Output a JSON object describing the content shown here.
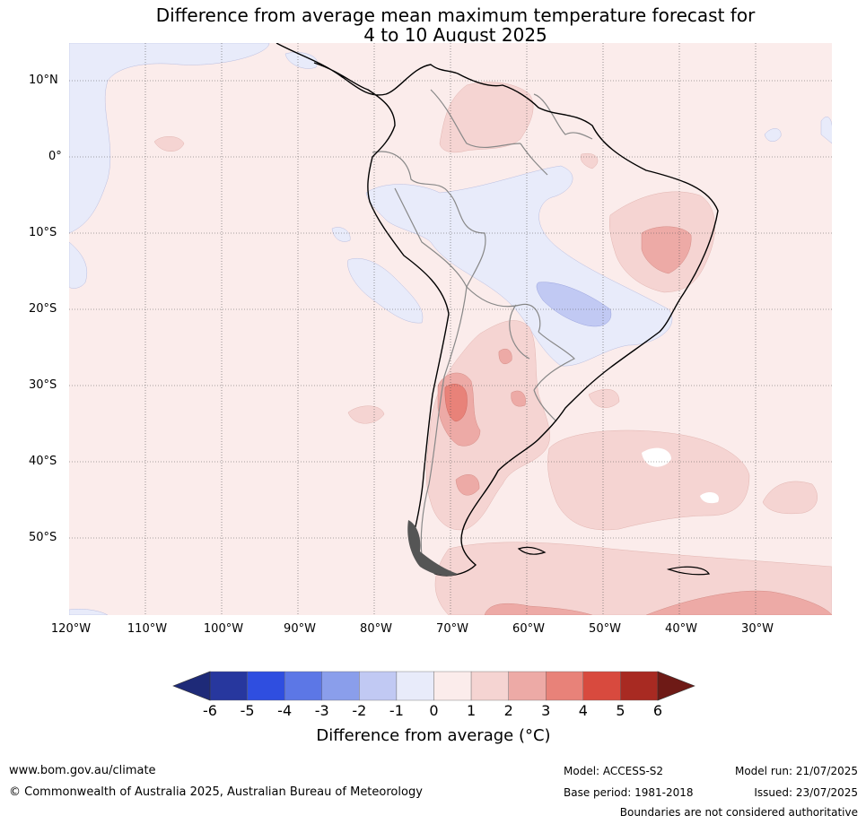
{
  "title": {
    "line1": "Difference from average mean maximum temperature forecast for",
    "line2": "4 to 10 August 2025"
  },
  "map": {
    "lat_labels": [
      "10°N",
      "0°",
      "10°S",
      "20°S",
      "30°S",
      "40°S",
      "50°S"
    ],
    "lon_labels": [
      "120°W",
      "110°W",
      "100°W",
      "90°W",
      "80°W",
      "70°W",
      "60°W",
      "50°W",
      "40°W",
      "30°W"
    ],
    "lon_range": [
      -120,
      -20
    ],
    "lat_range": [
      -60,
      15
    ],
    "gridlines": true
  },
  "colorbar": {
    "ticks": [
      "-6",
      "-5",
      "-4",
      "-3",
      "-2",
      "-1",
      "0",
      "1",
      "2",
      "3",
      "4",
      "5",
      "6"
    ],
    "colors": [
      "#27379e",
      "#2f4ee0",
      "#5c77e6",
      "#8a9eeb",
      "#c1c9f3",
      "#e8ebfa",
      "#fbeceb",
      "#f5d4d2",
      "#edaaa6",
      "#e88279",
      "#d84a3e",
      "#a82a22"
    ],
    "under_color": "#1e2a78",
    "over_color": "#6e1a16",
    "label": "Difference from average (°C)"
  },
  "footer": {
    "url": "www.bom.gov.au/climate",
    "copyright": "© Commonwealth of Australia 2025, Australian Bureau of Meteorology",
    "model": "Model: ACCESS-S2",
    "base_period": "Base period: 1981-2018",
    "model_run": "Model run: 21/07/2025",
    "issued": "Issued: 23/07/2025",
    "disclaimer": "Boundaries are not considered authoritative"
  }
}
